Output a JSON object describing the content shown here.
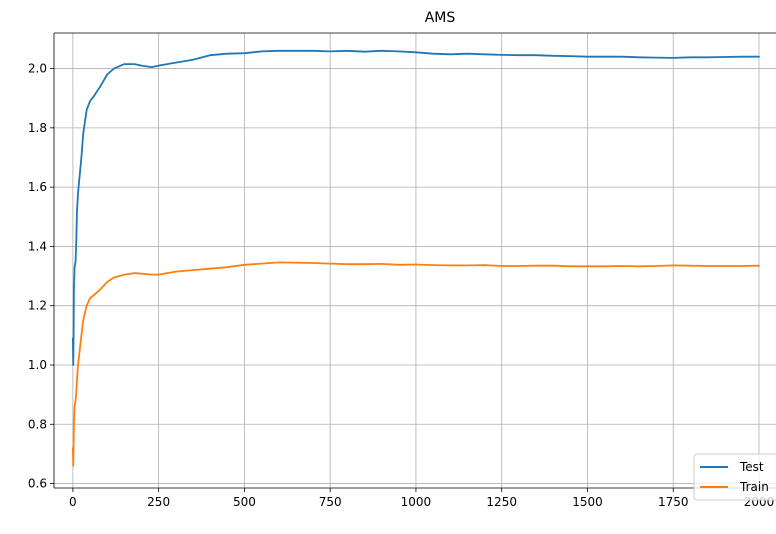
{
  "chart_data": {
    "type": "line",
    "title": "AMS",
    "xlabel": "",
    "ylabel": "",
    "xlim": [
      -55,
      2000
    ],
    "ylim": [
      0.585,
      2.12
    ],
    "xticks": [
      0,
      250,
      500,
      750,
      1000,
      1250,
      1500,
      1750,
      2000
    ],
    "xtick_labels": [
      "0",
      "250",
      "500",
      "750",
      "1000",
      "1250",
      "1500",
      "1750",
      "2000"
    ],
    "yticks": [
      0.6,
      0.8,
      1.0,
      1.2,
      1.4,
      1.6,
      1.8,
      2.0
    ],
    "ytick_labels": [
      "0.6",
      "0.8",
      "1.0",
      "1.2",
      "1.4",
      "1.6",
      "1.8",
      "2.0"
    ],
    "grid": true,
    "legend_position": "bottom-right",
    "series": [
      {
        "name": "Test",
        "color": "#1f77b4",
        "x": [
          0,
          1,
          2,
          3,
          5,
          8,
          10,
          12,
          15,
          20,
          25,
          30,
          40,
          50,
          60,
          80,
          100,
          120,
          150,
          180,
          200,
          230,
          250,
          300,
          350,
          400,
          450,
          500,
          550,
          600,
          700,
          750,
          800,
          850,
          900,
          950,
          1000,
          1050,
          1100,
          1150,
          1200,
          1250,
          1300,
          1350,
          1400,
          1450,
          1500,
          1550,
          1600,
          1650,
          1700,
          1750,
          1800,
          1850,
          1900,
          1950,
          2000
        ],
        "y": [
          1.09,
          1.0,
          1.1,
          1.25,
          1.33,
          1.35,
          1.42,
          1.52,
          1.58,
          1.64,
          1.7,
          1.78,
          1.86,
          1.89,
          1.905,
          1.94,
          1.98,
          2.0,
          2.015,
          2.015,
          2.01,
          2.005,
          2.01,
          2.02,
          2.03,
          2.045,
          2.05,
          2.052,
          2.058,
          2.06,
          2.06,
          2.058,
          2.06,
          2.057,
          2.06,
          2.058,
          2.055,
          2.05,
          2.048,
          2.05,
          2.048,
          2.046,
          2.045,
          2.045,
          2.043,
          2.042,
          2.04,
          2.04,
          2.04,
          2.038,
          2.037,
          2.036,
          2.038,
          2.038,
          2.039,
          2.04,
          2.04
        ]
      },
      {
        "name": "Train",
        "color": "#ff7f0e",
        "x": [
          0,
          1,
          2,
          3,
          5,
          8,
          10,
          12,
          15,
          20,
          25,
          30,
          40,
          50,
          60,
          80,
          100,
          120,
          150,
          180,
          200,
          230,
          250,
          300,
          350,
          400,
          450,
          500,
          550,
          600,
          700,
          750,
          800,
          850,
          900,
          950,
          1000,
          1050,
          1100,
          1150,
          1200,
          1250,
          1300,
          1350,
          1400,
          1450,
          1500,
          1550,
          1600,
          1650,
          1700,
          1750,
          1800,
          1850,
          1900,
          1950,
          2000
        ],
        "y": [
          0.72,
          0.66,
          0.73,
          0.8,
          0.86,
          0.88,
          0.91,
          0.95,
          1.0,
          1.05,
          1.1,
          1.15,
          1.2,
          1.225,
          1.235,
          1.255,
          1.28,
          1.295,
          1.305,
          1.31,
          1.308,
          1.305,
          1.305,
          1.315,
          1.32,
          1.325,
          1.33,
          1.338,
          1.342,
          1.346,
          1.344,
          1.342,
          1.34,
          1.34,
          1.341,
          1.338,
          1.339,
          1.337,
          1.336,
          1.336,
          1.337,
          1.334,
          1.334,
          1.335,
          1.335,
          1.333,
          1.333,
          1.333,
          1.334,
          1.333,
          1.334,
          1.336,
          1.335,
          1.334,
          1.334,
          1.334,
          1.335
        ]
      }
    ]
  }
}
